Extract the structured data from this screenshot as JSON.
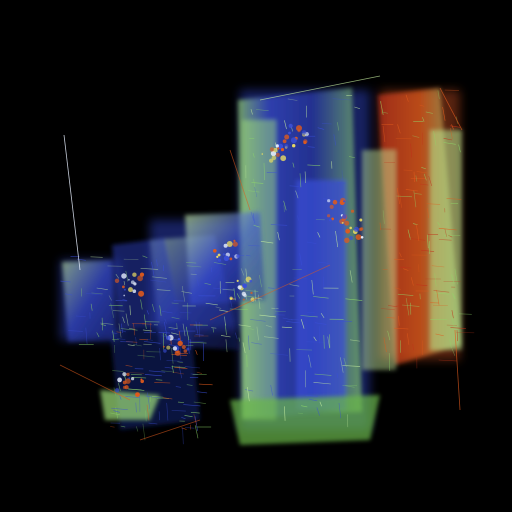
{
  "scene": {
    "subject": "abstract-fractal-structure",
    "background": "#000000",
    "palette": {
      "blue": "#3a4fd8",
      "deep_blue": "#1a2a8c",
      "green": "#8fd86a",
      "pale_green": "#c8f0a0",
      "orange": "#e05a1c",
      "red": "#c0321a",
      "yellow": "#f0e060",
      "white": "#e8f0ff"
    }
  }
}
